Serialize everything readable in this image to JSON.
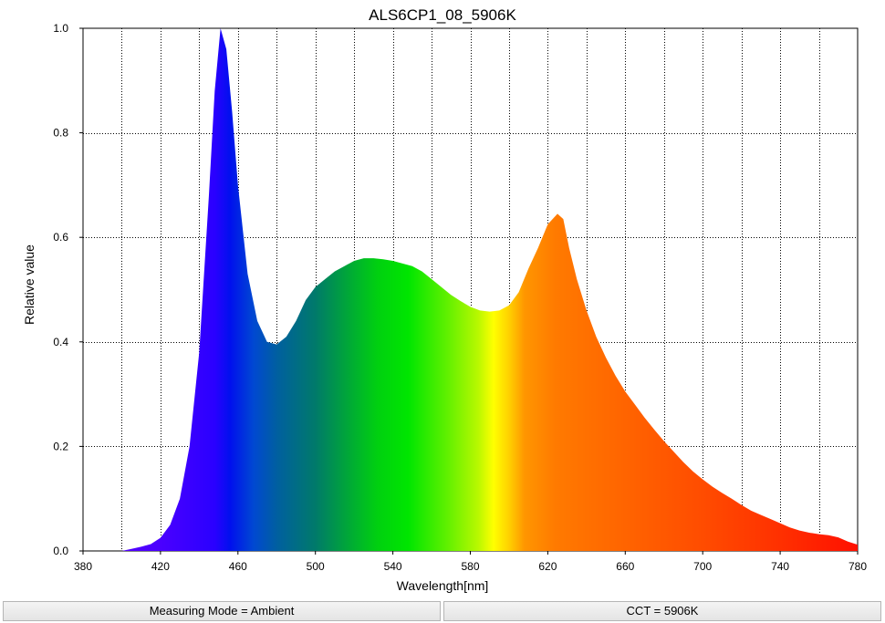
{
  "chart_data": {
    "type": "area",
    "title": "ALS6CP1_08_5906K",
    "xlabel": "Wavelength[nm]",
    "ylabel": "Relative value",
    "xlim": [
      380,
      780
    ],
    "ylim": [
      0,
      1.0
    ],
    "xticks": [
      380,
      420,
      460,
      500,
      540,
      580,
      620,
      660,
      700,
      740,
      780
    ],
    "yticks": [
      0.0,
      0.2,
      0.4,
      0.6,
      0.8,
      1.0
    ],
    "xtick_labels": [
      "380",
      "420",
      "460",
      "500",
      "540",
      "580",
      "620",
      "660",
      "700",
      "740",
      "780"
    ],
    "ytick_labels": [
      "0.0",
      "0.2",
      "0.4",
      "0.6",
      "0.8",
      "1.0"
    ],
    "grid": true,
    "fill": "visible-spectrum-gradient",
    "x": [
      400,
      405,
      410,
      415,
      420,
      425,
      430,
      435,
      440,
      445,
      448,
      451,
      454,
      457,
      460,
      465,
      470,
      475,
      480,
      485,
      490,
      495,
      500,
      505,
      510,
      515,
      520,
      525,
      530,
      535,
      540,
      545,
      550,
      555,
      560,
      565,
      570,
      575,
      580,
      585,
      590,
      595,
      600,
      605,
      610,
      615,
      620,
      625,
      628,
      631,
      635,
      640,
      645,
      650,
      655,
      660,
      665,
      670,
      675,
      680,
      685,
      690,
      695,
      700,
      705,
      710,
      715,
      720,
      725,
      730,
      735,
      740,
      745,
      750,
      755,
      760,
      765,
      770,
      775,
      780
    ],
    "y": [
      0.0,
      0.004,
      0.008,
      0.013,
      0.025,
      0.05,
      0.1,
      0.2,
      0.38,
      0.68,
      0.88,
      1.0,
      0.96,
      0.84,
      0.7,
      0.53,
      0.44,
      0.4,
      0.395,
      0.41,
      0.44,
      0.48,
      0.505,
      0.52,
      0.535,
      0.545,
      0.555,
      0.56,
      0.56,
      0.558,
      0.555,
      0.55,
      0.545,
      0.535,
      0.52,
      0.505,
      0.49,
      0.478,
      0.467,
      0.46,
      0.458,
      0.46,
      0.47,
      0.495,
      0.54,
      0.58,
      0.625,
      0.645,
      0.635,
      0.58,
      0.52,
      0.46,
      0.41,
      0.37,
      0.335,
      0.305,
      0.28,
      0.255,
      0.232,
      0.21,
      0.19,
      0.17,
      0.152,
      0.137,
      0.123,
      0.111,
      0.1,
      0.088,
      0.077,
      0.069,
      0.061,
      0.053,
      0.045,
      0.039,
      0.035,
      0.032,
      0.03,
      0.026,
      0.018,
      0.012
    ]
  },
  "status_bar": {
    "measuring_mode": "Measuring Mode = Ambient",
    "cct": "CCT = 5906K"
  }
}
